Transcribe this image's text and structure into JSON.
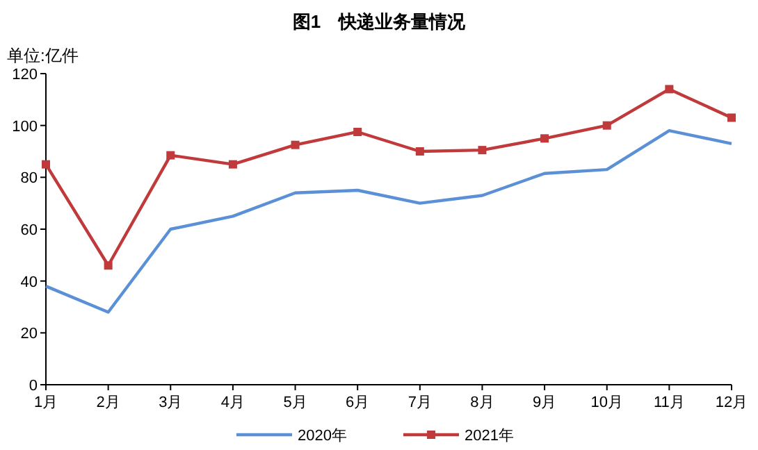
{
  "chart_data": {
    "type": "line",
    "title": "图1　快递业务量情况",
    "ylabel": "单位:亿件",
    "categories": [
      "1月",
      "2月",
      "3月",
      "4月",
      "5月",
      "6月",
      "7月",
      "8月",
      "9月",
      "10月",
      "11月",
      "12月"
    ],
    "series": [
      {
        "name": "2020年",
        "color": "#5b8fd6",
        "marker": "none",
        "values": [
          38,
          28,
          60,
          65,
          74,
          75,
          70,
          73,
          81.5,
          83,
          98,
          93
        ]
      },
      {
        "name": "2021年",
        "color": "#c0393b",
        "marker": "square",
        "values": [
          85,
          46,
          88.5,
          85,
          92.5,
          97.5,
          90,
          90.5,
          95,
          100,
          114,
          103
        ]
      }
    ],
    "ylim": [
      0,
      120
    ],
    "yticks": [
      0,
      20,
      40,
      60,
      80,
      100,
      120
    ],
    "grid": false,
    "legend": "bottom",
    "line_style": "solid"
  }
}
